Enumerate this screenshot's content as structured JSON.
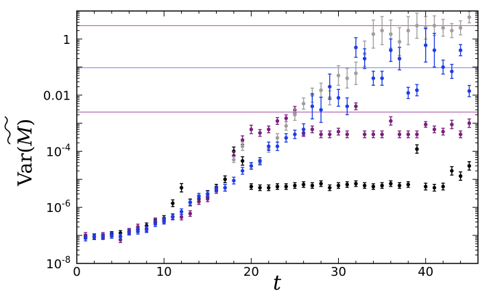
{
  "chart_data": {
    "type": "scatter",
    "title": "",
    "xlabel": "t",
    "ylabel_prefix": "Var(",
    "ylabel_symbol": "M",
    "ylabel_suffix": ")",
    "ylabel_accent": "tilde",
    "yscale": "log",
    "xlim": [
      0,
      46
    ],
    "ylim": [
      1e-08,
      10
    ],
    "grid": false,
    "x_ticks": [
      0,
      10,
      20,
      30,
      40
    ],
    "x_tick_labels": [
      "0",
      "10",
      "20",
      "30",
      "40"
    ],
    "y_ticks": [
      1e-08,
      1e-06,
      0.0001,
      0.01,
      1
    ],
    "y_tick_labels": [
      {
        "base": "10",
        "exp": "-8"
      },
      {
        "base": "10",
        "exp": "-6"
      },
      {
        "base": "10",
        "exp": "-4"
      },
      {
        "base": "0.01",
        "exp": ""
      },
      {
        "base": "1",
        "exp": ""
      }
    ],
    "hlines": [
      {
        "y": 3.0,
        "color": "#c0504d"
      },
      {
        "y": 0.095,
        "color": "#7b8ff5"
      },
      {
        "y": 0.0025,
        "color": "#b05aa8"
      }
    ],
    "series": [
      {
        "color": "#000000",
        "x": [
          1,
          2,
          3,
          4,
          5,
          6,
          7,
          8,
          9,
          10,
          11,
          12,
          13,
          14,
          15,
          16,
          17,
          18,
          19,
          20,
          21,
          22,
          23,
          24,
          25,
          26,
          27,
          28,
          29,
          30,
          31,
          32,
          33,
          34,
          35,
          36,
          37,
          38,
          39,
          40,
          41,
          42,
          43,
          44,
          45
        ],
        "y": [
          9e-08,
          9e-08,
          9e-08,
          1.1e-07,
          1.2e-07,
          1.3e-07,
          1.6e-07,
          2.2e-07,
          3e-07,
          4e-07,
          1.4e-06,
          5e-06,
          1.5e-06,
          2e-06,
          3e-06,
          5e-06,
          1e-05,
          0.0001,
          4.5e-05,
          5.5e-06,
          5e-06,
          5e-06,
          5.5e-06,
          5.5e-06,
          6e-06,
          6.5e-06,
          6e-06,
          7e-06,
          5e-06,
          6e-06,
          6.5e-06,
          7e-06,
          6e-06,
          5.5e-06,
          6e-06,
          7e-06,
          6e-06,
          6.5e-06,
          0.00012,
          5.5e-06,
          5e-06,
          5.5e-06,
          2e-05,
          1.3e-05,
          3e-05
        ],
        "err": [
          0.08,
          0.08,
          0.08,
          0.09,
          0.09,
          0.09,
          0.1,
          0.1,
          0.1,
          0.1,
          0.12,
          0.15,
          0.12,
          0.12,
          0.12,
          0.12,
          0.12,
          0.15,
          0.15,
          0.1,
          0.1,
          0.1,
          0.1,
          0.1,
          0.1,
          0.1,
          0.1,
          0.1,
          0.1,
          0.1,
          0.1,
          0.1,
          0.1,
          0.1,
          0.1,
          0.1,
          0.1,
          0.1,
          0.15,
          0.12,
          0.12,
          0.12,
          0.15,
          0.15,
          0.15
        ]
      },
      {
        "color": "#7b1f7b",
        "x": [
          1,
          2,
          3,
          4,
          5,
          6,
          7,
          8,
          9,
          10,
          11,
          12,
          13,
          14,
          15,
          16,
          17,
          18,
          19,
          20,
          21,
          22,
          23,
          24,
          25,
          26,
          27,
          28,
          29,
          30,
          31,
          32,
          33,
          34,
          35,
          36,
          37,
          38,
          39,
          40,
          41,
          42,
          43,
          44,
          45
        ],
        "y": [
          1e-07,
          9e-08,
          1e-07,
          1e-07,
          7e-08,
          1.4e-07,
          2e-07,
          1.7e-07,
          3.3e-07,
          3.5e-07,
          4.5e-07,
          4.5e-07,
          6e-07,
          1.6e-06,
          2e-06,
          4e-06,
          5e-06,
          7e-05,
          0.00025,
          0.0006,
          0.00045,
          0.0006,
          0.0012,
          0.0015,
          0.003,
          0.00045,
          0.0006,
          0.0004,
          0.0004,
          0.0005,
          0.0004,
          0.004,
          0.0004,
          0.0004,
          0.0004,
          0.0012,
          0.0004,
          0.0004,
          0.0004,
          0.0009,
          0.0006,
          0.0005,
          0.0009,
          0.0004,
          0.001
        ],
        "err": [
          0.1,
          0.1,
          0.1,
          0.1,
          0.1,
          0.1,
          0.1,
          0.1,
          0.1,
          0.1,
          0.1,
          0.1,
          0.1,
          0.1,
          0.1,
          0.1,
          0.12,
          0.15,
          0.15,
          0.15,
          0.12,
          0.12,
          0.12,
          0.12,
          0.12,
          0.12,
          0.12,
          0.12,
          0.12,
          0.12,
          0.12,
          0.12,
          0.12,
          0.12,
          0.12,
          0.15,
          0.12,
          0.12,
          0.12,
          0.1,
          0.12,
          0.12,
          0.15,
          0.12,
          0.15
        ]
      },
      {
        "color": "#9e9e9e",
        "x": [
          18,
          19,
          20,
          21,
          22,
          23,
          24,
          25,
          26,
          27,
          28,
          29,
          30,
          31,
          32,
          33,
          34,
          35,
          36,
          37,
          38,
          39,
          40,
          41,
          42,
          43,
          44,
          45
        ],
        "y": [
          5e-05,
          0.00015,
          3e-05,
          4e-05,
          0.00012,
          0.0003,
          0.0008,
          0.002,
          0.005,
          0.01,
          0.015,
          0.008,
          0.05,
          0.04,
          0.06,
          0.3,
          1.5,
          2,
          1.5,
          0.8,
          2,
          3,
          2.5,
          3,
          2.5,
          2,
          2.5,
          6
        ],
        "err": [
          0.1,
          0.15,
          0.1,
          0.1,
          0.12,
          0.15,
          0.15,
          0.2,
          0.2,
          0.25,
          0.25,
          0.25,
          0.35,
          0.35,
          0.4,
          0.45,
          0.5,
          0.5,
          0.5,
          0.5,
          0.5,
          0.45,
          0.4,
          0.35,
          0.3,
          0.25,
          0.25,
          0.2
        ]
      },
      {
        "color": "#1c3de6",
        "x": [
          1,
          2,
          3,
          4,
          5,
          6,
          7,
          8,
          9,
          10,
          11,
          12,
          13,
          14,
          15,
          16,
          17,
          18,
          19,
          20,
          21,
          22,
          23,
          24,
          25,
          26,
          27,
          28,
          29,
          30,
          31,
          32,
          33,
          34,
          35,
          36,
          37,
          38,
          39,
          40,
          41,
          42,
          43,
          44,
          45
        ],
        "y": [
          8e-08,
          9e-08,
          9e-08,
          1e-07,
          9e-08,
          1.3e-07,
          1.4e-07,
          1.6e-07,
          2.6e-07,
          3.2e-07,
          4.7e-07,
          7e-07,
          1.5e-06,
          2.5e-06,
          3e-06,
          4.5e-06,
          5e-06,
          9e-06,
          2e-05,
          3e-05,
          4.5e-05,
          0.00015,
          0.00015,
          0.0003,
          0.0004,
          0.0006,
          0.004,
          0.003,
          0.02,
          0.008,
          0.004,
          0.5,
          0.2,
          0.04,
          0.04,
          0.4,
          0.2,
          0.012,
          0.015,
          0.6,
          0.4,
          0.1,
          0.07,
          0.4,
          0.014
        ],
        "err": [
          0.1,
          0.1,
          0.1,
          0.1,
          0.1,
          0.1,
          0.1,
          0.1,
          0.1,
          0.1,
          0.1,
          0.1,
          0.1,
          0.1,
          0.1,
          0.1,
          0.12,
          0.12,
          0.12,
          0.12,
          0.12,
          0.15,
          0.15,
          0.15,
          0.15,
          0.2,
          0.45,
          0.45,
          0.45,
          0.3,
          0.3,
          0.35,
          0.35,
          0.25,
          0.25,
          0.4,
          0.4,
          0.2,
          0.2,
          0.6,
          0.6,
          0.25,
          0.25,
          0.2,
          0.2
        ]
      }
    ]
  }
}
